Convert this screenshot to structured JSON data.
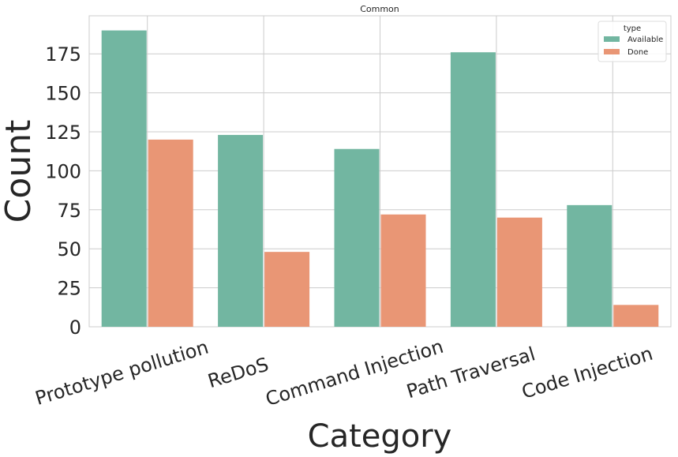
{
  "chart_data": {
    "type": "bar",
    "title": "Common",
    "xlabel": "Category",
    "ylabel": "Count",
    "categories": [
      "Prototype pollution",
      "ReDoS",
      "Command Injection",
      "Path Traversal",
      "Code Injection"
    ],
    "series": [
      {
        "name": "Available",
        "color": "#72b6a1",
        "values": [
          190,
          123,
          114,
          176,
          78
        ]
      },
      {
        "name": "Done",
        "color": "#e99675",
        "values": [
          120,
          48,
          72,
          70,
          14
        ]
      }
    ],
    "ylim": [
      0,
      200
    ],
    "yticks": [
      0,
      25,
      50,
      75,
      100,
      125,
      150,
      175
    ],
    "grid": true,
    "legend": {
      "title": "type",
      "placement": "top-right"
    }
  }
}
